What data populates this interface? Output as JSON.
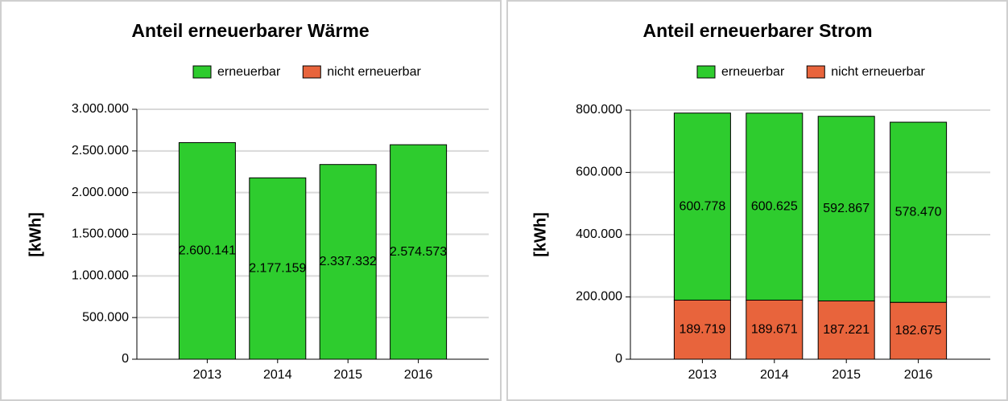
{
  "chart_data": [
    {
      "type": "stacked_bar",
      "title": "Anteil erneuerbarer Wärme",
      "y_label": "[kWh]",
      "categories": [
        "2013",
        "2014",
        "2015",
        "2016"
      ],
      "series": [
        {
          "name": "erneuerbar",
          "color": "#2ecc2e",
          "values": [
            2600141,
            2177159,
            2337332,
            2574573
          ],
          "value_labels": [
            "2.600.141",
            "2.177.159",
            "2.337.332",
            "2.574.573"
          ]
        },
        {
          "name": "nicht erneuerbar",
          "color": "#e8643c",
          "values": [
            0,
            0,
            0,
            0
          ]
        }
      ],
      "ylim": [
        0,
        3000000
      ],
      "yticks": [
        {
          "value": 0,
          "label": "0"
        },
        {
          "value": 500000,
          "label": "500.000"
        },
        {
          "value": 1000000,
          "label": "1.000.000"
        },
        {
          "value": 1500000,
          "label": "1.500.000"
        },
        {
          "value": 2000000,
          "label": "2.000.000"
        },
        {
          "value": 2500000,
          "label": "2.500.000"
        },
        {
          "value": 3000000,
          "label": "3.000.000"
        }
      ],
      "grid": true,
      "legend": "top-right"
    },
    {
      "type": "stacked_bar",
      "title": "Anteil erneuerbarer Strom",
      "y_label": "[kWh]",
      "categories": [
        "2013",
        "2014",
        "2015",
        "2016"
      ],
      "series": [
        {
          "name": "erneuerbar",
          "color": "#2ecc2e",
          "values": [
            600778,
            600625,
            592867,
            578470
          ],
          "value_labels": [
            "600.778",
            "600.625",
            "592.867",
            "578.470"
          ]
        },
        {
          "name": "nicht erneuerbar",
          "color": "#e8643c",
          "values": [
            189719,
            189671,
            187221,
            182675
          ],
          "value_labels": [
            "189.719",
            "189.671",
            "187.221",
            "182.675"
          ]
        }
      ],
      "ylim": [
        0,
        800000
      ],
      "yticks": [
        {
          "value": 0,
          "label": "0"
        },
        {
          "value": 200000,
          "label": "200.000"
        },
        {
          "value": 400000,
          "label": "400.000"
        },
        {
          "value": 600000,
          "label": "600.000"
        },
        {
          "value": 800000,
          "label": "800.000"
        }
      ],
      "grid": true,
      "legend": "top-right"
    }
  ]
}
